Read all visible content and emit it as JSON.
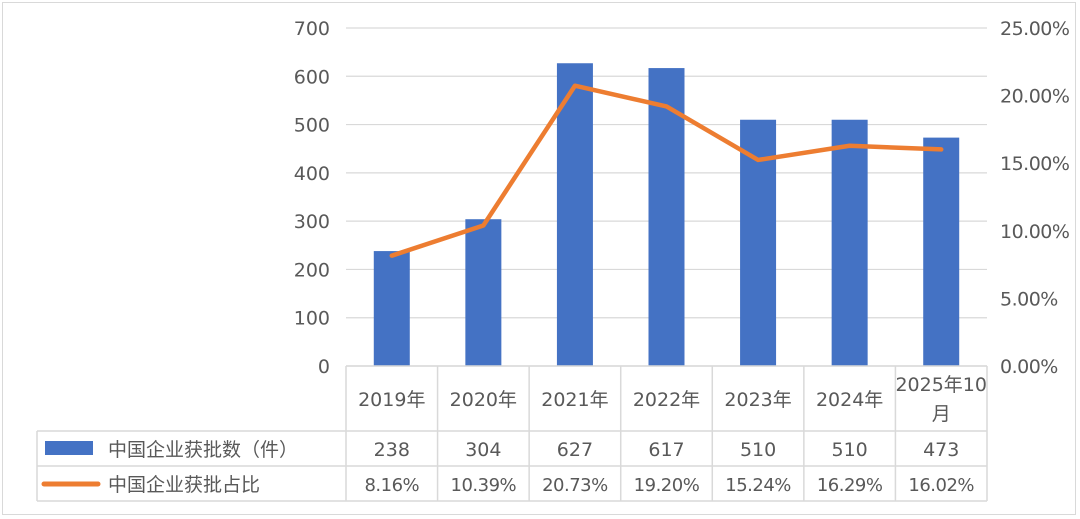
{
  "chart_data": {
    "type": "bar+line",
    "categories": [
      "2019年",
      "2020年",
      "2021年",
      "2022年",
      "2023年",
      "2024年",
      "2025年10月"
    ],
    "category_lines": [
      [
        "2019年"
      ],
      [
        "2020年"
      ],
      [
        "2021年"
      ],
      [
        "2022年"
      ],
      [
        "2023年"
      ],
      [
        "2024年"
      ],
      [
        "2025年10",
        "月"
      ]
    ],
    "series": [
      {
        "name": "中国企业获批数（件）",
        "type": "bar",
        "axis": "left",
        "color": "#4472C4",
        "values": [
          238,
          304,
          627,
          617,
          510,
          510,
          473
        ],
        "labels": [
          "238",
          "304",
          "627",
          "617",
          "510",
          "510",
          "473"
        ]
      },
      {
        "name": "中国企业获批占比",
        "type": "line",
        "axis": "right",
        "color": "#ED7D31",
        "values": [
          8.16,
          10.39,
          20.73,
          19.2,
          15.24,
          16.29,
          16.02
        ],
        "labels": [
          "8.16%",
          "10.39%",
          "20.73%",
          "19.20%",
          "15.24%",
          "16.29%",
          "16.02%"
        ]
      }
    ],
    "y_left": {
      "range": [
        0,
        700
      ],
      "ticks": [
        "0",
        "100",
        "200",
        "300",
        "400",
        "500",
        "600",
        "700"
      ]
    },
    "y_right": {
      "range": [
        0,
        25
      ],
      "ticks": [
        "0.00%",
        "5.00%",
        "10.00%",
        "15.00%",
        "20.00%",
        "25.00%"
      ]
    },
    "grid": true,
    "legend": "data-table-bottom",
    "title": "",
    "xlabel": "",
    "ylabel": ""
  }
}
